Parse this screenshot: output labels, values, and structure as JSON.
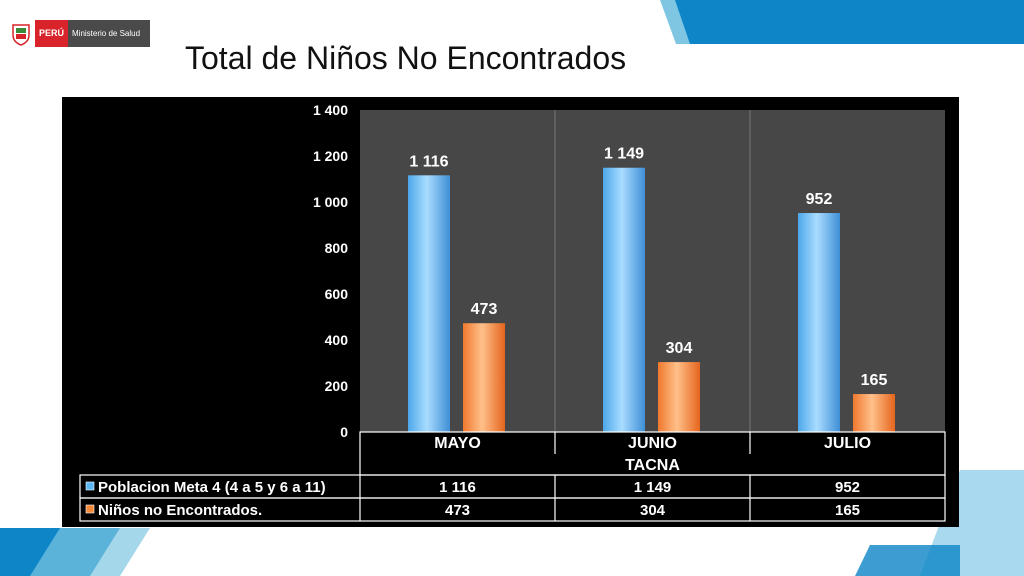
{
  "header": {
    "country_label": "PERÚ",
    "ministry_label": "Ministerio de Salud",
    "title": "Total de Niños No Encontrados"
  },
  "colors": {
    "background": "#ffffff",
    "accent_blue": "#0d85c7",
    "accent_light": "#7fc6e3",
    "chart_bg": "#000000",
    "plot_bg": "#474747",
    "series1": "#6cc4f8",
    "series2": "#f79646"
  },
  "chart_data": {
    "type": "bar",
    "title": "",
    "categories": [
      "MAYO",
      "JUNIO",
      "JULIO"
    ],
    "group_label": "TACNA",
    "series": [
      {
        "name": "Poblacion Meta 4 (4 a 5 y 6 a 11)",
        "values": [
          1116,
          1149,
          952
        ],
        "labels": [
          "1 116",
          "1 149",
          "952"
        ]
      },
      {
        "name": "Niños no Encontrados.",
        "values": [
          473,
          304,
          165
        ],
        "labels": [
          "473",
          "304",
          "165"
        ]
      }
    ],
    "ylim": [
      0,
      1400
    ],
    "yticks": [
      0,
      200,
      400,
      600,
      800,
      1000,
      1200,
      1400
    ],
    "ytick_labels": [
      "0",
      "200",
      "400",
      "600",
      "800",
      "1 000",
      "1 200",
      "1 400"
    ],
    "grid": "vertical category separators",
    "legend": "data table below chart"
  }
}
